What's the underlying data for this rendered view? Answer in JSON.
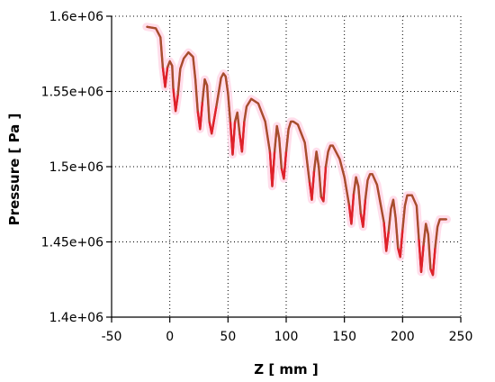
{
  "chart_data": {
    "type": "line",
    "title": "",
    "xlabel": "Z [ mm ]",
    "ylabel": "Pressure [ Pa ]",
    "xlim": [
      -50,
      250
    ],
    "ylim": [
      1400000,
      1600000
    ],
    "x_ticks": [
      -50,
      0,
      50,
      100,
      150,
      200,
      250
    ],
    "x_tick_labels": [
      "-50",
      "0",
      "50",
      "100",
      "150",
      "200",
      "250"
    ],
    "y_ticks": [
      1400000,
      1450000,
      1500000,
      1550000,
      1600000
    ],
    "y_tick_labels": [
      "1.4e+06",
      "1.45e+06",
      "1.5e+06",
      "1.55e+06",
      "1.6e+06"
    ],
    "grid": true,
    "colors": {
      "line": "#a0522d",
      "dips": "#e0202a",
      "halo": "#ffd6e6",
      "axis": "#000000"
    },
    "series": [
      {
        "name": "",
        "x": [
          -20,
          -12,
          -8,
          -6,
          -4,
          -2,
          0,
          2,
          3,
          5,
          7,
          9,
          12,
          16,
          20,
          22,
          24,
          26,
          28,
          30,
          32,
          34,
          36,
          40,
          44,
          46,
          48,
          50,
          52,
          54,
          56,
          58,
          60,
          62,
          64,
          66,
          70,
          76,
          82,
          86,
          88,
          90,
          92,
          94,
          96,
          98,
          100,
          102,
          104,
          106,
          110,
          116,
          120,
          122,
          124,
          126,
          128,
          130,
          132,
          134,
          136,
          138,
          140,
          146,
          150,
          154,
          156,
          158,
          160,
          162,
          164,
          166,
          168,
          170,
          172,
          174,
          178,
          184,
          186,
          188,
          190,
          192,
          194,
          196,
          198,
          200,
          202,
          204,
          208,
          212,
          214,
          216,
          218,
          220,
          222,
          224,
          226,
          228,
          230,
          232,
          234,
          238
        ],
        "y": [
          1593000,
          1592000,
          1586000,
          1566000,
          1553000,
          1566000,
          1570000,
          1567000,
          1552000,
          1537000,
          1548000,
          1565000,
          1572000,
          1576000,
          1573000,
          1558000,
          1537000,
          1525000,
          1543000,
          1558000,
          1554000,
          1530000,
          1522000,
          1540000,
          1559000,
          1562000,
          1560000,
          1549000,
          1530000,
          1508000,
          1530000,
          1536000,
          1522000,
          1510000,
          1530000,
          1540000,
          1545000,
          1542000,
          1530000,
          1510000,
          1487000,
          1510000,
          1527000,
          1519000,
          1499000,
          1492000,
          1510000,
          1525000,
          1530000,
          1530000,
          1528000,
          1516000,
          1490000,
          1478000,
          1497000,
          1510000,
          1500000,
          1480000,
          1477000,
          1500000,
          1510000,
          1514000,
          1514000,
          1505000,
          1493000,
          1475000,
          1462000,
          1482000,
          1493000,
          1487000,
          1469000,
          1460000,
          1478000,
          1491000,
          1495000,
          1495000,
          1488000,
          1463000,
          1444000,
          1457000,
          1472000,
          1478000,
          1466000,
          1446000,
          1440000,
          1458000,
          1474000,
          1481000,
          1481000,
          1474000,
          1452000,
          1430000,
          1448000,
          1462000,
          1455000,
          1432000,
          1428000,
          1446000,
          1460000,
          1465000,
          1465000,
          1465000
        ]
      }
    ]
  }
}
